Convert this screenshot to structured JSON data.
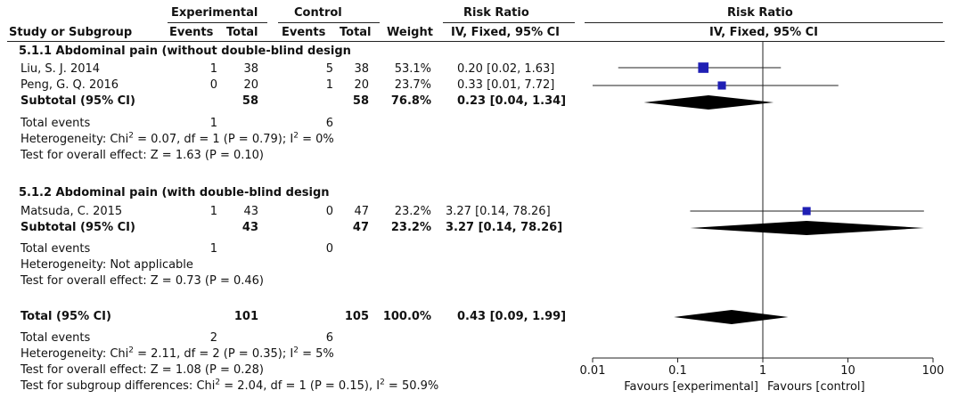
{
  "header": {
    "group_experimental": "Experimental",
    "group_control": "Control",
    "group_rr_table": "Risk Ratio",
    "group_rr_plot": "Risk Ratio",
    "col_study": "Study or Subgroup",
    "col_events_e": "Events",
    "col_total_e": "Total",
    "col_events_c": "Events",
    "col_total_c": "Total",
    "col_weight": "Weight",
    "col_method_table": "IV, Fixed, 95% CI",
    "col_method_plot": "IV, Fixed, 95% CI"
  },
  "subgroup1": {
    "title": "5.1.1 Abdominal pain (without double-blind design",
    "studies": [
      {
        "name": "Liu, S. J. 2014",
        "events_e": "1",
        "total_e": "38",
        "events_c": "5",
        "total_c": "38",
        "weight": "53.1%",
        "ci_text": "0.20 [0.02, 1.63]"
      },
      {
        "name": "Peng, G. Q. 2016",
        "events_e": "0",
        "total_e": "20",
        "events_c": "1",
        "total_c": "20",
        "weight": "23.7%",
        "ci_text": "0.33 [0.01, 7.72]"
      }
    ],
    "subtotal": {
      "label": "Subtotal (95% CI)",
      "total_e": "58",
      "total_c": "58",
      "weight": "76.8%",
      "ci_text": "0.23 [0.04, 1.34]"
    },
    "total_events": {
      "label": "Total events",
      "e": "1",
      "c": "6"
    },
    "heterogeneity_pre": "Heterogeneity: Chi",
    "heterogeneity_mid": " = 0.07, df = 1 (P = 0.79); I",
    "heterogeneity_post": " = 0%",
    "sup2": "2",
    "overall": "Test for overall effect: Z = 1.63 (P = 0.10)"
  },
  "subgroup2": {
    "title": "5.1.2 Abdominal pain (with double-blind design",
    "studies": [
      {
        "name": "Matsuda, C. 2015",
        "events_e": "1",
        "total_e": "43",
        "events_c": "0",
        "total_c": "47",
        "weight": "23.2%",
        "ci_text": "3.27 [0.14, 78.26]"
      }
    ],
    "subtotal": {
      "label": "Subtotal (95% CI)",
      "total_e": "43",
      "total_c": "47",
      "weight": "23.2%",
      "ci_text": "3.27 [0.14, 78.26]"
    },
    "total_events": {
      "label": "Total events",
      "e": "1",
      "c": "0"
    },
    "heterogeneity": "Heterogeneity: Not applicable",
    "overall": "Test for overall effect: Z = 0.73 (P = 0.46)"
  },
  "total": {
    "label": "Total (95% CI)",
    "total_e": "101",
    "total_c": "105",
    "weight": "100.0%",
    "ci_text": "0.43 [0.09, 1.99]",
    "total_events": {
      "label": "Total events",
      "e": "2",
      "c": "6"
    },
    "heterogeneity_pre": "Heterogeneity: Chi",
    "heterogeneity_mid": " = 2.11, df = 2 (P = 0.35); I",
    "heterogeneity_post": " = 5%",
    "sup2": "2",
    "overall": "Test for overall effect: Z = 1.08 (P = 0.28)",
    "subgroup_diff_pre": "Test for subgroup differences: Chi",
    "subgroup_diff_mid": " = 2.04, df = 1 (P = 0.15), I",
    "subgroup_diff_post": " = 50.9%"
  },
  "chart_data": {
    "type": "forest",
    "scale": "log",
    "xlim": [
      0.01,
      100
    ],
    "ticks": [
      0.01,
      0.1,
      1,
      10,
      100
    ],
    "tick_labels": [
      "0.01",
      "0.1",
      "1",
      "10",
      "100"
    ],
    "xlabel_left": "Favours [experimental]",
    "xlabel_right": "Favours [control]",
    "studies": [
      {
        "name": "Liu, S. J. 2014",
        "rr": 0.2,
        "lo": 0.02,
        "hi": 1.63,
        "weight": 53.1
      },
      {
        "name": "Peng, G. Q. 2016",
        "rr": 0.33,
        "lo": 0.01,
        "hi": 7.72,
        "weight": 23.7
      },
      {
        "name": "Matsuda, C. 2015",
        "rr": 3.27,
        "lo": 0.14,
        "hi": 78.26,
        "weight": 23.2
      }
    ],
    "diamonds": [
      {
        "name": "Subtotal 5.1.1",
        "rr": 0.23,
        "lo": 0.04,
        "hi": 1.34
      },
      {
        "name": "Subtotal 5.1.2",
        "rr": 3.27,
        "lo": 0.14,
        "hi": 78.26
      },
      {
        "name": "Total",
        "rr": 0.43,
        "lo": 0.09,
        "hi": 1.99
      }
    ],
    "colors": {
      "square": "#1f1fb4",
      "diamond": "#000000",
      "line": "#222222"
    }
  }
}
